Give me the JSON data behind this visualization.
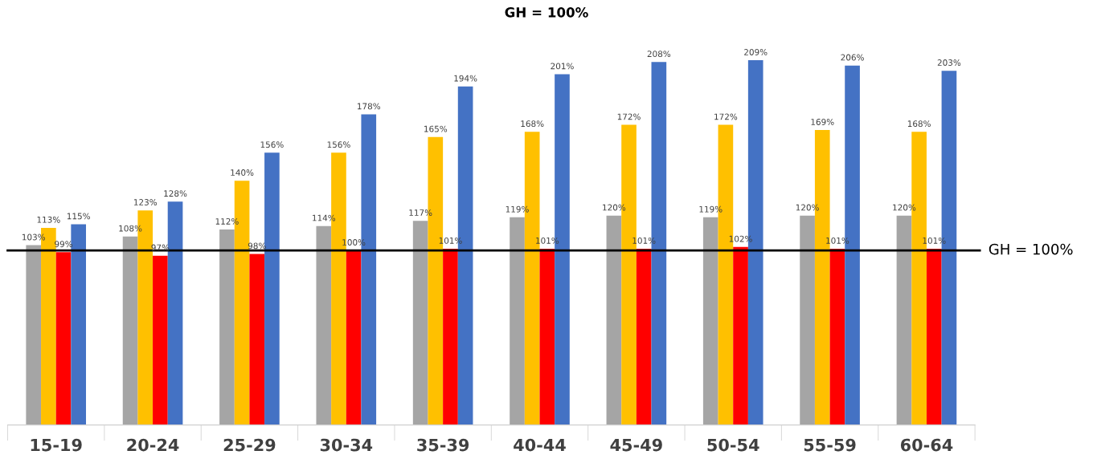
{
  "chart_data": {
    "type": "bar",
    "title": "GH = 100%",
    "categories": [
      "15-19",
      "20-24",
      "25-29",
      "30-34",
      "35-39",
      "40-44",
      "45-49",
      "50-54",
      "55-59",
      "60-64"
    ],
    "series": [
      {
        "color": "#a5a5a5",
        "values": [
          103,
          108,
          112,
          114,
          117,
          119,
          120,
          119,
          120,
          120
        ],
        "value_labels": [
          "103%",
          "108%",
          "112%",
          "114%",
          "117%",
          "119%",
          "120%",
          "119%",
          "120%",
          "120%"
        ]
      },
      {
        "color": "#ffc000",
        "values": [
          113,
          123,
          140,
          156,
          165,
          168,
          172,
          172,
          169,
          168
        ],
        "value_labels": [
          "113%",
          "123%",
          "140%",
          "156%",
          "165%",
          "168%",
          "172%",
          "172%",
          "169%",
          "168%"
        ]
      },
      {
        "color": "#ff0000",
        "values": [
          99,
          97,
          98,
          100,
          101,
          101,
          101,
          102,
          101,
          101
        ],
        "value_labels": [
          "99%",
          "97%",
          "98%",
          "100%",
          "101%",
          "101%",
          "101%",
          "102%",
          "101%",
          "101%"
        ]
      },
      {
        "color": "#4472c4",
        "values": [
          115,
          128,
          156,
          178,
          194,
          201,
          208,
          209,
          206,
          203
        ],
        "value_labels": [
          "115%",
          "128%",
          "156%",
          "178%",
          "194%",
          "201%",
          "208%",
          "209%",
          "206%",
          "203%"
        ]
      }
    ],
    "ref_lines": [
      {
        "axis": "y",
        "value": 100,
        "label": "GH = 100%",
        "color": "#000000"
      }
    ],
    "grid": false,
    "legend": false
  }
}
